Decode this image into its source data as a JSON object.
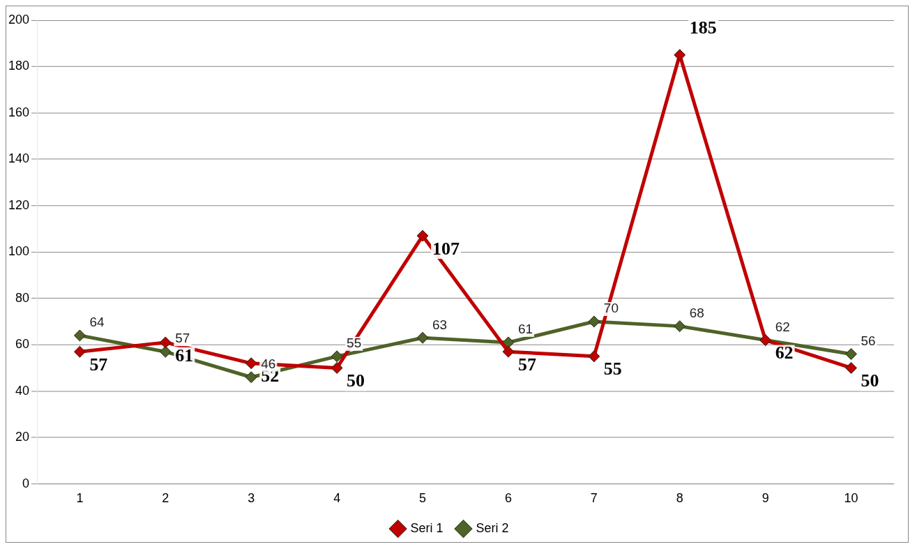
{
  "chart_data": {
    "type": "line",
    "categories": [
      "1",
      "2",
      "3",
      "4",
      "5",
      "6",
      "7",
      "8",
      "9",
      "10"
    ],
    "series": [
      {
        "name": "Seri 1",
        "color": "#c00000",
        "values": [
          57,
          61,
          52,
          50,
          107,
          57,
          55,
          185,
          62,
          50
        ]
      },
      {
        "name": "Seri 2",
        "color": "#4f6228",
        "values": [
          64,
          57,
          46,
          55,
          63,
          61,
          70,
          68,
          62,
          56
        ]
      }
    ],
    "ylim": [
      0,
      200
    ],
    "yticks": [
      0,
      20,
      40,
      60,
      80,
      100,
      120,
      140,
      160,
      180,
      200
    ],
    "grid": "y",
    "legend": "bottom",
    "marker": "diamond",
    "line_style": "solid",
    "data_labels": true
  }
}
